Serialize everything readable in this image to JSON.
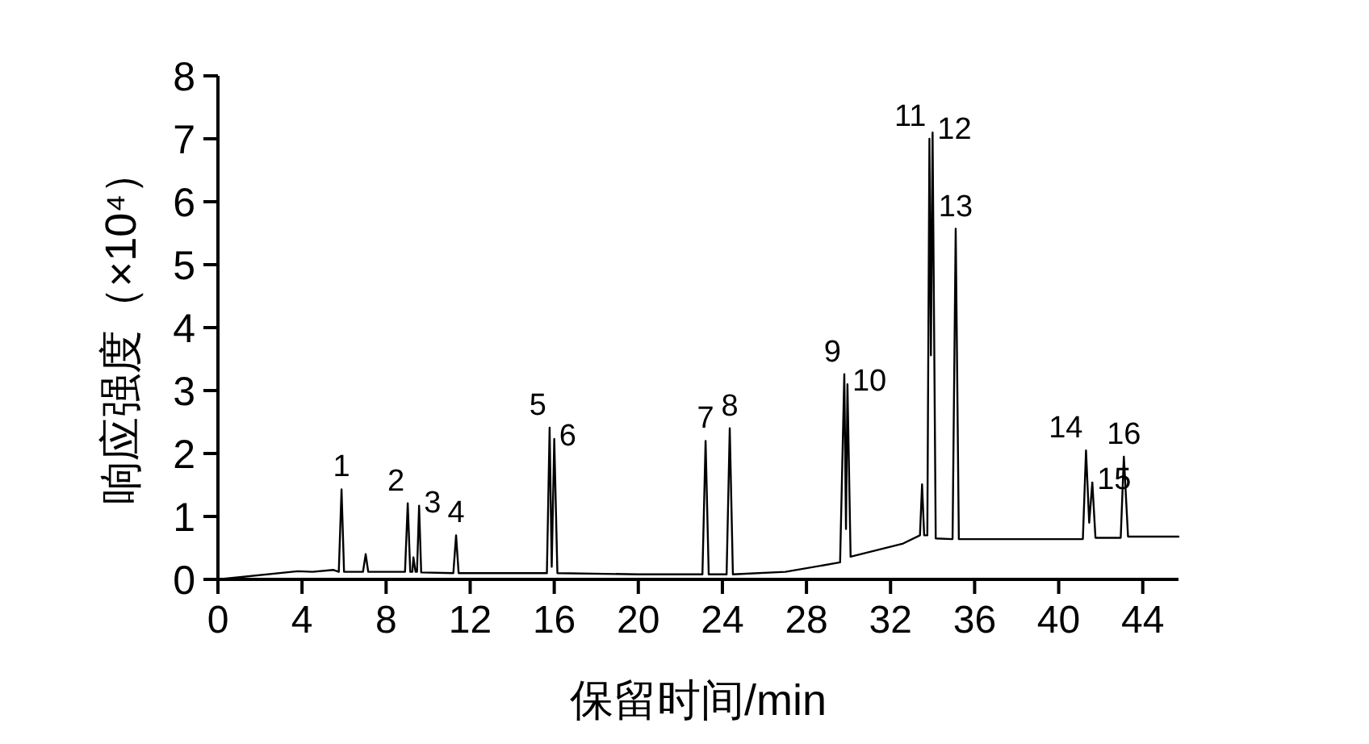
{
  "chart_data": {
    "type": "line",
    "xlabel": "保留时间/min",
    "ylabel": "响应强度（×10⁴）",
    "xlim": [
      0,
      45.7
    ],
    "xticks": [
      0,
      4,
      8,
      12,
      16,
      20,
      24,
      28,
      32,
      36,
      40,
      44
    ],
    "ylim": [
      0,
      8
    ],
    "yticks": [
      0,
      1,
      2,
      3,
      4,
      5,
      6,
      7,
      8
    ],
    "grid": false,
    "marker": "none",
    "line_style": "solid",
    "series": [
      {
        "color": "#000000",
        "x": [
          0,
          3.8,
          4.5,
          5.5,
          5.75,
          5.88,
          6.0,
          6.9,
          7.03,
          7.15,
          8.9,
          9.03,
          9.15,
          9.25,
          9.3,
          9.4,
          9.47,
          9.57,
          9.67,
          11.2,
          11.33,
          11.45,
          15.65,
          15.78,
          15.88,
          16.0,
          16.15,
          20,
          23.05,
          23.2,
          23.35,
          24.2,
          24.35,
          24.5,
          27,
          29.6,
          29.8,
          29.88,
          29.95,
          30.1,
          32.6,
          33.4,
          33.5,
          33.6,
          33.75,
          33.85,
          33.92,
          34.0,
          34.15,
          34.95,
          35.1,
          35.25,
          41.15,
          41.3,
          41.45,
          41.6,
          41.75,
          42.95,
          43.1,
          43.3,
          45.7
        ],
        "values": [
          0,
          0.13,
          0.12,
          0.15,
          0.12,
          1.43,
          0.12,
          0.12,
          0.4,
          0.12,
          0.12,
          1.21,
          0.12,
          0.12,
          0.35,
          0.12,
          0.12,
          1.17,
          0.11,
          0.1,
          0.7,
          0.1,
          0.1,
          2.41,
          0.2,
          2.23,
          0.1,
          0.08,
          0.08,
          2.2,
          0.08,
          0.08,
          2.4,
          0.08,
          0.12,
          0.27,
          3.26,
          0.8,
          3.1,
          0.36,
          0.57,
          0.7,
          1.51,
          0.7,
          0.7,
          7.0,
          3.56,
          7.1,
          0.65,
          0.64,
          5.57,
          0.64,
          0.64,
          2.05,
          0.9,
          1.54,
          0.66,
          0.66,
          1.95,
          0.68,
          0.68
        ]
      }
    ],
    "annotations": [
      {
        "text": "1",
        "x": 5.88,
        "y": 1.43
      },
      {
        "text": "2",
        "x": 9.03,
        "y": 1.21
      },
      {
        "text": "3",
        "x": 9.57,
        "y": 1.17
      },
      {
        "text": "4",
        "x": 11.33,
        "y": 0.7
      },
      {
        "text": "5",
        "x": 15.78,
        "y": 2.41
      },
      {
        "text": "6",
        "x": 16.0,
        "y": 2.23
      },
      {
        "text": "7",
        "x": 23.2,
        "y": 2.2
      },
      {
        "text": "8",
        "x": 24.35,
        "y": 2.4
      },
      {
        "text": "9",
        "x": 29.8,
        "y": 3.26
      },
      {
        "text": "10",
        "x": 29.95,
        "y": 3.1
      },
      {
        "text": "11",
        "x": 33.85,
        "y": 7.0
      },
      {
        "text": "12",
        "x": 34.0,
        "y": 7.1
      },
      {
        "text": "13",
        "x": 35.1,
        "y": 5.57
      },
      {
        "text": "14",
        "x": 41.3,
        "y": 2.05
      },
      {
        "text": "15",
        "x": 41.6,
        "y": 1.54
      },
      {
        "text": "16",
        "x": 43.1,
        "y": 1.95
      }
    ]
  }
}
